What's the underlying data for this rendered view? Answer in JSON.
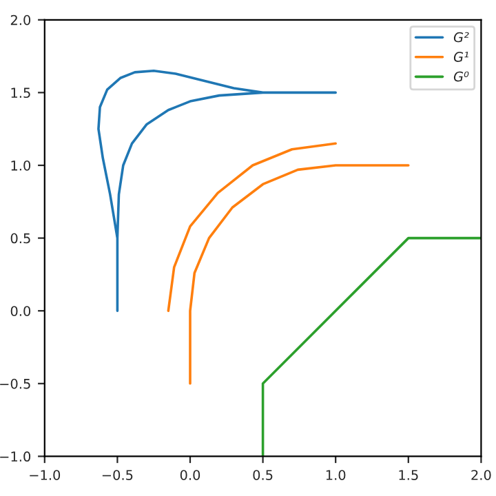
{
  "chart_data": {
    "type": "line",
    "xlim": [
      -1.0,
      2.0
    ],
    "ylim": [
      -1.0,
      2.0
    ],
    "xticks": [
      {
        "value": -1.0,
        "label": "−1.0"
      },
      {
        "value": -0.5,
        "label": "−0.5"
      },
      {
        "value": 0.0,
        "label": "0.0"
      },
      {
        "value": 0.5,
        "label": "0.5"
      },
      {
        "value": 1.0,
        "label": "1.0"
      },
      {
        "value": 1.5,
        "label": "1.5"
      },
      {
        "value": 2.0,
        "label": "2.0"
      }
    ],
    "yticks": [
      {
        "value": -1.0,
        "label": "−1.0"
      },
      {
        "value": -0.5,
        "label": "−0.5"
      },
      {
        "value": 0.0,
        "label": "0.0"
      },
      {
        "value": 0.5,
        "label": "0.5"
      },
      {
        "value": 1.0,
        "label": "1.0"
      },
      {
        "value": 1.5,
        "label": "1.5"
      },
      {
        "value": 2.0,
        "label": "2.0"
      }
    ],
    "legend": "top right",
    "grid": false,
    "series": [
      {
        "name": "G²",
        "color": "#1f77b4",
        "x": [
          -0.5,
          -0.5,
          -0.55,
          -0.6,
          -0.63,
          -0.62,
          -0.57,
          -0.48,
          -0.38,
          -0.25,
          -0.1,
          0.1,
          0.3,
          0.5,
          1.0,
          null,
          -0.5,
          -0.49,
          -0.46,
          -0.4,
          -0.3,
          -0.15,
          0.0,
          0.2,
          0.5
        ],
        "values": [
          0.0,
          0.5,
          0.8,
          1.05,
          1.25,
          1.4,
          1.52,
          1.6,
          1.64,
          1.65,
          1.63,
          1.58,
          1.53,
          1.5,
          1.5,
          null,
          0.5,
          0.8,
          1.0,
          1.15,
          1.28,
          1.38,
          1.44,
          1.48,
          1.5
        ]
      },
      {
        "name": "G¹",
        "color": "#ff7f0e",
        "x": [
          -0.15,
          -0.11,
          0.0,
          0.19,
          0.43,
          0.7,
          1.0,
          null,
          0.0,
          0.0,
          0.03,
          0.13,
          0.29,
          0.5,
          0.74,
          1.0,
          1.5
        ],
        "values": [
          0.0,
          0.3,
          0.58,
          0.81,
          1.0,
          1.11,
          1.15,
          null,
          -0.5,
          0.0,
          0.26,
          0.5,
          0.71,
          0.87,
          0.97,
          1.0,
          1.0
        ]
      },
      {
        "name": "G⁰",
        "color": "#2ca02c",
        "x": [
          0.5,
          0.5,
          1.5,
          2.0
        ],
        "values": [
          -1.0,
          -0.5,
          0.5,
          0.5
        ]
      }
    ]
  }
}
